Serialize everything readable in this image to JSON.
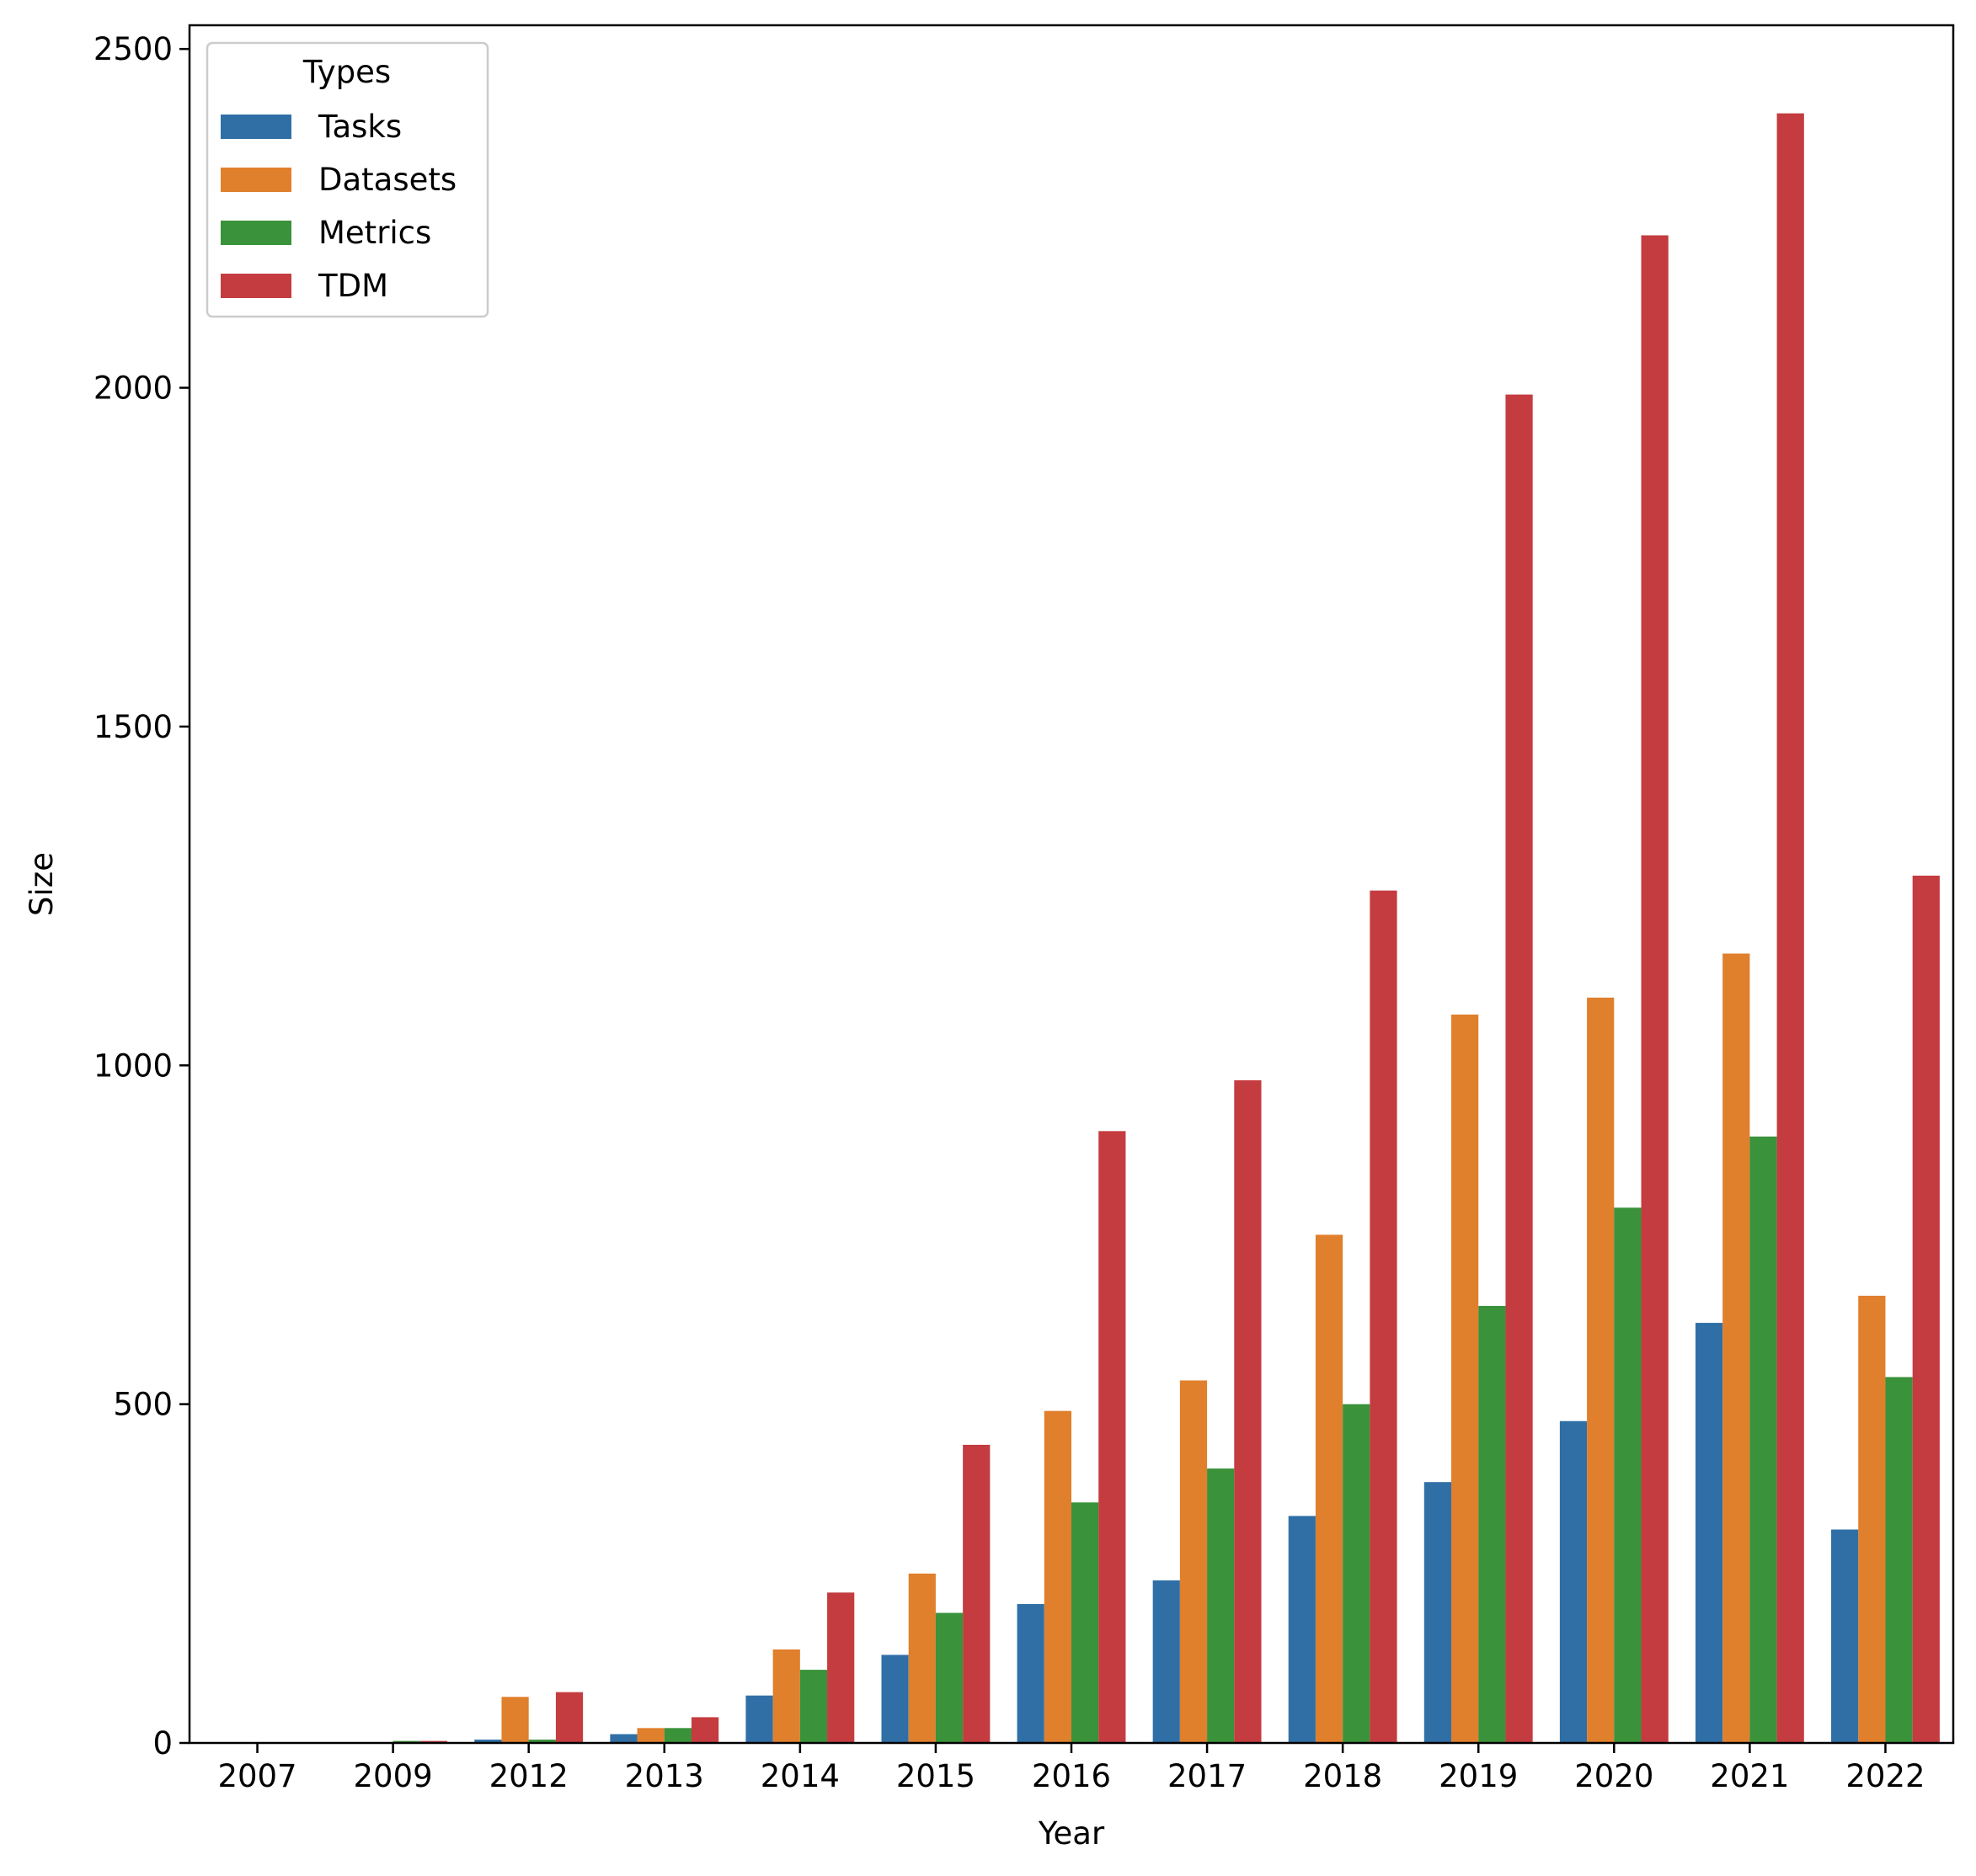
{
  "chart_data": {
    "type": "bar",
    "xlabel": "Year",
    "ylabel": "Size",
    "ylim": [
      0,
      2535
    ],
    "yticks": [
      0,
      500,
      1000,
      1500,
      2000,
      2500
    ],
    "categories": [
      "2007",
      "2009",
      "2012",
      "2013",
      "2014",
      "2015",
      "2016",
      "2017",
      "2018",
      "2019",
      "2020",
      "2021",
      "2022"
    ],
    "legend": {
      "title": "Types",
      "placement": "top-left"
    },
    "series": [
      {
        "name": "Tasks",
        "color": "#2f6fa6",
        "values": [
          0,
          0,
          5,
          13,
          70,
          130,
          205,
          240,
          335,
          385,
          475,
          620,
          315
        ]
      },
      {
        "name": "Datasets",
        "color": "#e07f2c",
        "values": [
          0,
          0,
          68,
          22,
          138,
          250,
          490,
          535,
          750,
          1075,
          1100,
          1165,
          660
        ]
      },
      {
        "name": "Metrics",
        "color": "#3a923a",
        "values": [
          0,
          3,
          5,
          22,
          108,
          192,
          355,
          405,
          500,
          645,
          790,
          895,
          540
        ]
      },
      {
        "name": "TDM",
        "color": "#c43c3f",
        "values": [
          0,
          3,
          75,
          38,
          222,
          440,
          903,
          978,
          1258,
          1990,
          2225,
          2405,
          1280
        ]
      }
    ],
    "grid": false
  }
}
